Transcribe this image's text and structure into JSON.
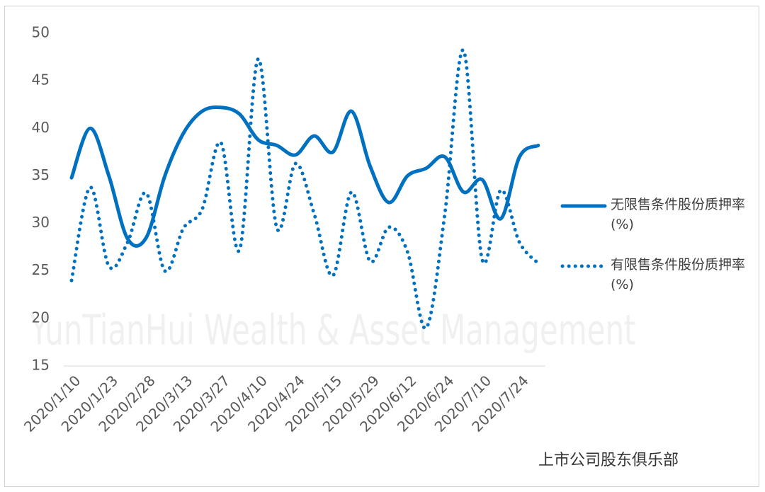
{
  "chart_data": {
    "type": "line",
    "categories": [
      "2020/1/10",
      null,
      "2020/1/23",
      null,
      "2020/2/28",
      null,
      "2020/3/13",
      null,
      "2020/3/27",
      null,
      "2020/4/10",
      null,
      "2020/4/24",
      null,
      "2020/5/15",
      null,
      "2020/5/29",
      null,
      "2020/6/12",
      null,
      "2020/6/24",
      null,
      "2020/7/10",
      null,
      "2020/7/24",
      null
    ],
    "series": [
      {
        "name": "无限售条件股份质押率(%)",
        "color": "#0070c0",
        "style": "solid",
        "values": [
          34.8,
          40,
          35,
          28.4,
          28.5,
          35,
          39.5,
          41.8,
          42.2,
          41.5,
          38.8,
          38.2,
          37.2,
          39.2,
          37.5,
          41.8,
          36,
          32.2,
          35,
          35.8,
          37,
          33.3,
          34.6,
          30.5,
          37,
          38.2
        ]
      },
      {
        "name": "有限售条件股份质押率(%)",
        "color": "#0070c0",
        "style": "dotted",
        "values": [
          24,
          33.8,
          25.5,
          28,
          33.2,
          25,
          29.5,
          31.5,
          38.5,
          27.2,
          47.3,
          29.5,
          36.3,
          31,
          24.5,
          33.3,
          26,
          29.6,
          27,
          19,
          31,
          48.2,
          26.2,
          33.5,
          28,
          25.8
        ]
      }
    ],
    "ylim": [
      15,
      50
    ],
    "yticks": [
      15,
      20,
      25,
      30,
      35,
      40,
      45,
      50
    ],
    "grid": false,
    "background_text": "YunTianHui Wealth & Asset Management",
    "watermark": "上市公司股东俱乐部"
  }
}
